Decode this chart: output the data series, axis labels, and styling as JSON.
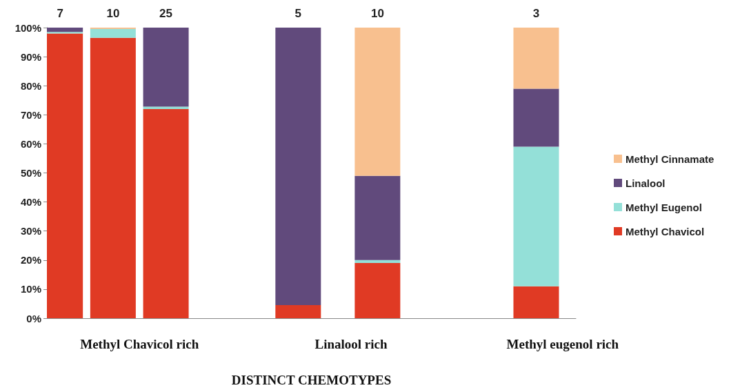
{
  "chart_data": {
    "type": "bar",
    "stacked": true,
    "xlabel": "DISTINCT CHEMOTYPES",
    "categories": [
      null,
      null,
      null,
      "Methyl Chavicol rich",
      null,
      null,
      null,
      null,
      null,
      null,
      null,
      "Linalool rich",
      null,
      null,
      null,
      null,
      null,
      null,
      null,
      "Methyl eugenol rich"
    ],
    "series": [
      {
        "name": "Methyl Chavicol",
        "color": "#e03a24",
        "values": [
          98,
          null,
          96.5,
          null,
          72,
          null,
          null,
          null,
          null,
          4.5,
          null,
          null,
          19,
          null,
          null,
          null,
          null,
          null,
          11,
          null
        ]
      },
      {
        "name": "Methyl Eugenol",
        "color": "#94e0d8",
        "values": [
          0.5,
          null,
          3,
          null,
          0.8,
          null,
          null,
          null,
          null,
          0,
          null,
          null,
          1,
          null,
          null,
          null,
          null,
          null,
          48,
          null
        ]
      },
      {
        "name": "Linalool",
        "color": "#614a7c",
        "values": [
          1.5,
          null,
          0,
          null,
          27.2,
          null,
          null,
          null,
          null,
          95.5,
          null,
          null,
          29,
          null,
          null,
          null,
          null,
          null,
          20,
          null
        ]
      },
      {
        "name": "Methyl Cinnamate",
        "color": "#f8c08f",
        "values": [
          0,
          null,
          0.5,
          null,
          0,
          null,
          null,
          null,
          null,
          0,
          null,
          null,
          51,
          null,
          null,
          null,
          null,
          null,
          21,
          null
        ]
      }
    ],
    "annotations": [
      "7",
      "10",
      "25",
      "5",
      "10",
      "3"
    ],
    "ylim": [
      0,
      100
    ],
    "yticks": [
      {
        "value": 0,
        "label": "0%"
      },
      {
        "value": 10,
        "label": "10%"
      },
      {
        "value": 20,
        "label": "20%"
      },
      {
        "value": 30,
        "label": "30%"
      },
      {
        "value": 40,
        "label": "40%"
      },
      {
        "value": 50,
        "label": "50%"
      },
      {
        "value": 60,
        "label": "60%"
      },
      {
        "value": 70,
        "label": "70%"
      },
      {
        "value": 80,
        "label": "80%"
      },
      {
        "value": 90,
        "label": "90%"
      },
      {
        "value": 100,
        "label": "100%"
      }
    ],
    "grid": false,
    "legend": "right"
  }
}
